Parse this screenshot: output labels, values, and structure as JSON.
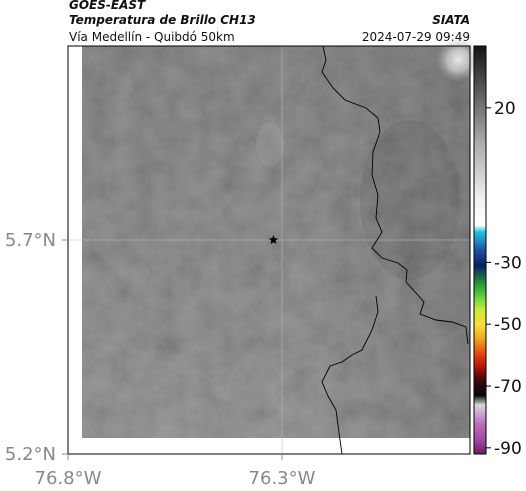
{
  "header": {
    "satellite": "GOES-EAST",
    "product": "Temperatura de Brillo CH13",
    "agency": "SIATA",
    "route": "Vía Medellín - Quibdó 50km",
    "datetime": "2024-07-29 09:49"
  },
  "map": {
    "lat_ticks": [
      {
        "value": 5.7,
        "label": "5.7°N"
      },
      {
        "value": 5.2,
        "label": "5.2°N"
      }
    ],
    "lon_ticks": [
      {
        "value": -76.8,
        "label": "76.8°W"
      },
      {
        "value": -76.3,
        "label": "76.3°W"
      }
    ],
    "marker": {
      "type": "star",
      "lat": 5.7,
      "lon": -76.32
    },
    "background_color": "#737373",
    "border_color": "#000000"
  },
  "colorbar": {
    "ticks": [
      {
        "value": 20,
        "label": "20"
      },
      {
        "value": -30,
        "label": "-30"
      },
      {
        "value": -50,
        "label": "-50"
      },
      {
        "value": -70,
        "label": "-70"
      },
      {
        "value": -90,
        "label": "-90"
      }
    ],
    "stops": [
      {
        "value": 40,
        "color": "#151515"
      },
      {
        "value": 10,
        "color": "#a6a6a6"
      },
      {
        "value": -10,
        "color": "#f2f2f2"
      },
      {
        "value": -18,
        "color": "#ffffff"
      },
      {
        "value": -20,
        "color": "#22c8dc"
      },
      {
        "value": -26,
        "color": "#1a52a4"
      },
      {
        "value": -31,
        "color": "#0a1e64"
      },
      {
        "value": -36,
        "color": "#1f8a3a"
      },
      {
        "value": -41,
        "color": "#5ad43c"
      },
      {
        "value": -45,
        "color": "#c6e83a"
      },
      {
        "value": -50,
        "color": "#f8e030"
      },
      {
        "value": -55,
        "color": "#f0a020"
      },
      {
        "value": -60,
        "color": "#e04010"
      },
      {
        "value": -64,
        "color": "#b01208"
      },
      {
        "value": -68,
        "color": "#3a0a0a"
      },
      {
        "value": -73,
        "color": "#080808"
      },
      {
        "value": -76,
        "color": "#d8d8d8"
      },
      {
        "value": -82,
        "color": "#c070c0"
      },
      {
        "value": -88,
        "color": "#a040a0"
      },
      {
        "value": -92,
        "color": "#602060"
      }
    ],
    "range": [
      -92,
      40
    ]
  }
}
